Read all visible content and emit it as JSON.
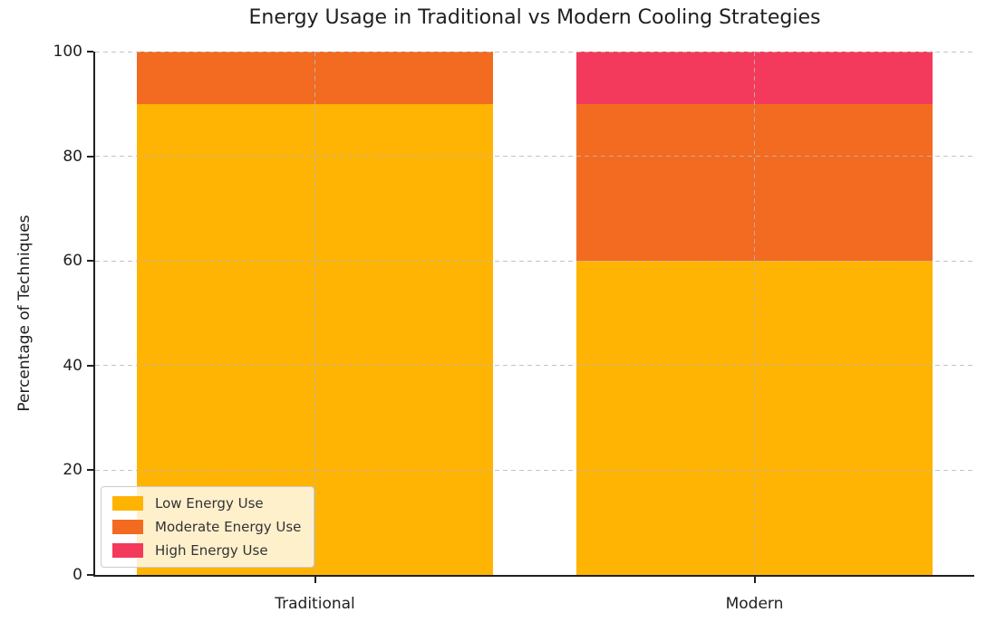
{
  "title": "Energy Usage in Traditional vs Modern Cooling Strategies",
  "chart_data": {
    "type": "bar",
    "stacked": true,
    "title": "Energy Usage in Traditional vs Modern Cooling Strategies",
    "xlabel": "",
    "ylabel": "Percentage of Techniques",
    "categories": [
      "Traditional",
      "Modern"
    ],
    "series": [
      {
        "name": "Low Energy Use",
        "color": "#FFB404",
        "values": [
          90,
          60
        ]
      },
      {
        "name": "Moderate Energy Use",
        "color": "#F26B21",
        "values": [
          10,
          30
        ]
      },
      {
        "name": "High Energy Use",
        "color": "#F43A5C",
        "values": [
          0,
          10
        ]
      }
    ],
    "ylim": [
      0,
      100
    ],
    "yticks": [
      0,
      20,
      40,
      60,
      80,
      100
    ],
    "grid": "dashed, both axes, drawn over bars",
    "legend_position": "lower left",
    "bar_width_fraction": 0.81,
    "colors": {
      "spine": "#1f1f1f",
      "grid": "#b9b9b9",
      "legend_border": "#cccccc",
      "legend_background": "rgba(255,255,255,0.8)",
      "text": "#1f1f1f"
    }
  }
}
